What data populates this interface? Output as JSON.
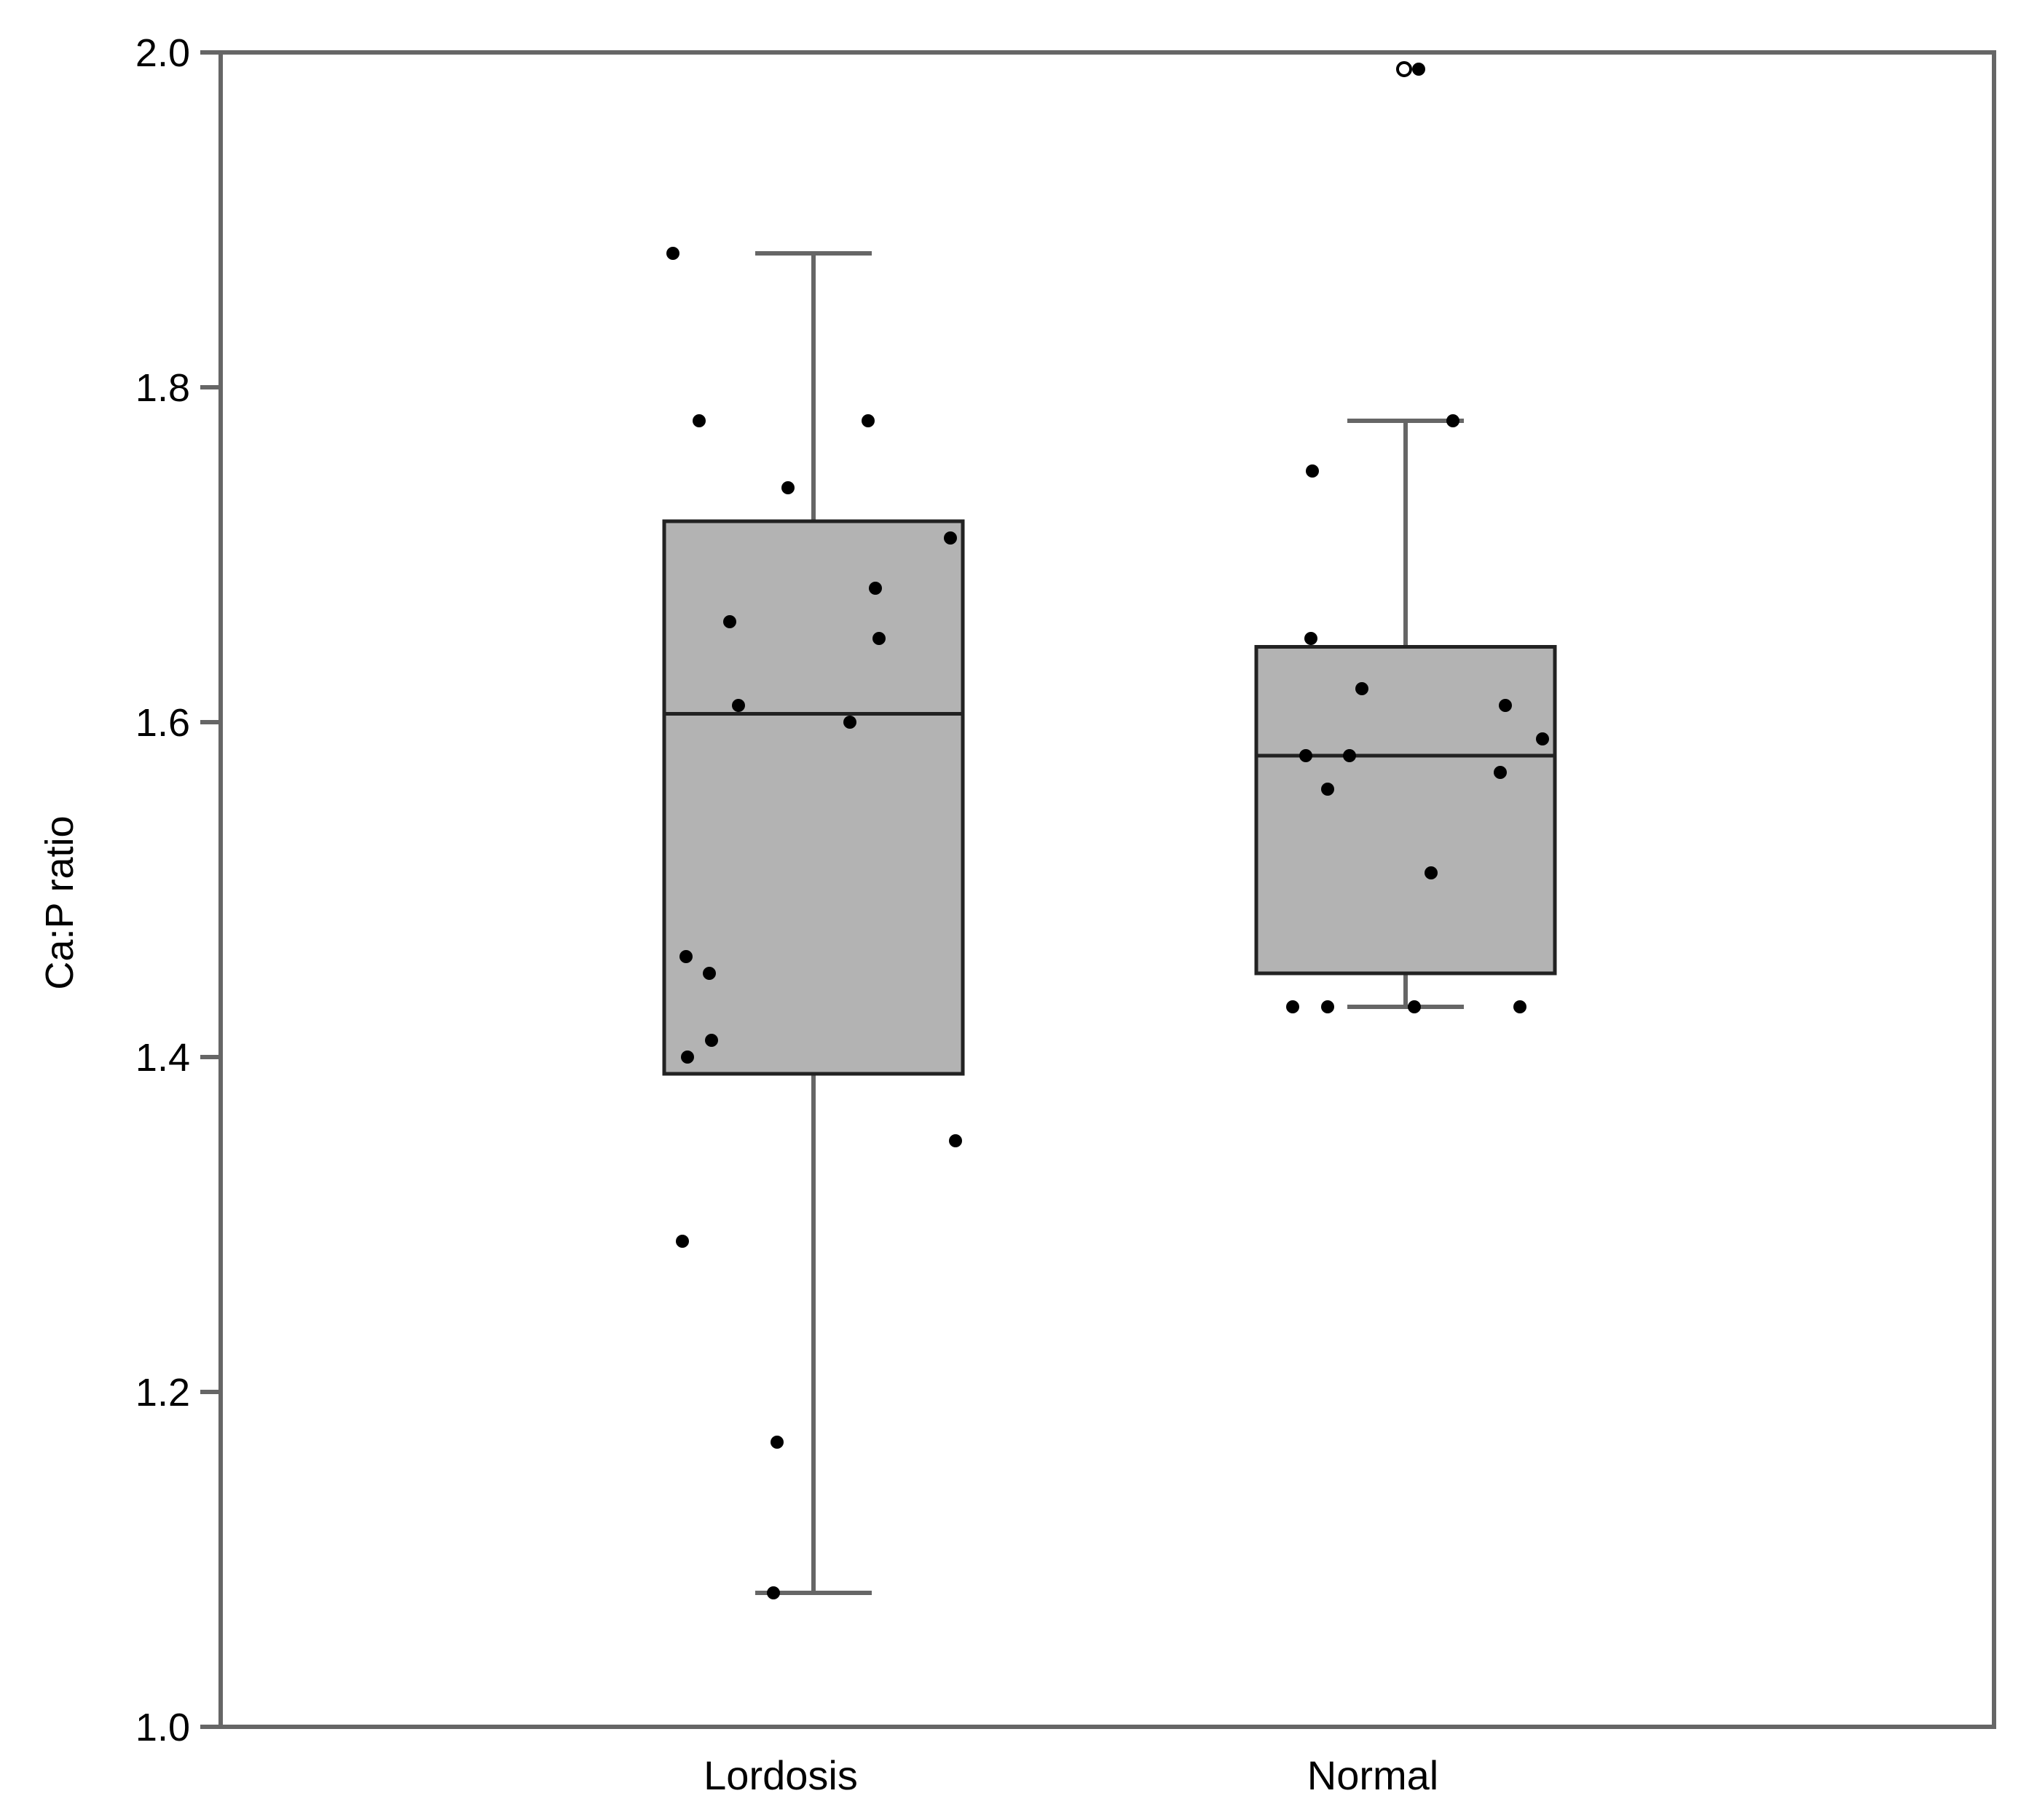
{
  "chart_data": {
    "type": "box",
    "title": "",
    "xlabel": "",
    "ylabel": "Ca:P ratio",
    "ylim": [
      1.0,
      2.0
    ],
    "yticks": [
      "1.0",
      "1.2",
      "1.4",
      "1.6",
      "1.8",
      "2.0"
    ],
    "grid": false,
    "legend": "none",
    "colors": {
      "box_fill": "#b3b3b3",
      "box_stroke": "#222222",
      "whisker": "#666666",
      "frame": "#666666",
      "point": "#000000"
    },
    "categories": [
      "Lordosis",
      "Normal"
    ],
    "boxes": [
      {
        "category": "Lordosis",
        "whisker_low": 1.08,
        "q1": 1.39,
        "median": 1.605,
        "q3": 1.72,
        "whisker_high": 1.88,
        "outliers": [],
        "points": [
          1.88,
          1.78,
          1.78,
          1.74,
          1.71,
          1.68,
          1.66,
          1.65,
          1.61,
          1.6,
          1.46,
          1.45,
          1.41,
          1.4,
          1.35,
          1.29,
          1.17,
          1.08
        ]
      },
      {
        "category": "Normal",
        "whisker_low": 1.43,
        "q1": 1.45,
        "median": 1.58,
        "q3": 1.645,
        "whisker_high": 1.78,
        "outliers": [
          1.99
        ],
        "points": [
          1.99,
          1.78,
          1.75,
          1.65,
          1.62,
          1.61,
          1.59,
          1.58,
          1.58,
          1.57,
          1.56,
          1.51,
          1.43,
          1.43,
          1.43,
          1.43
        ]
      }
    ]
  }
}
